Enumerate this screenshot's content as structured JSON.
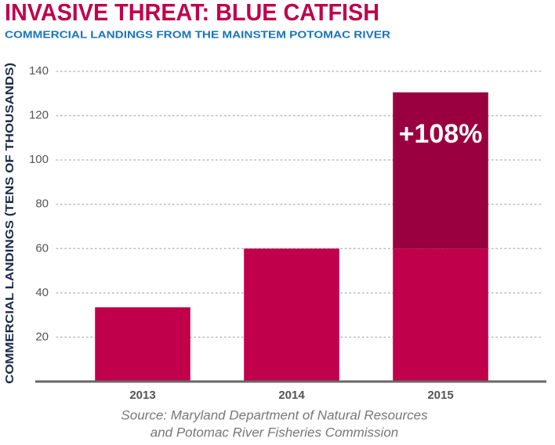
{
  "chart_data": {
    "type": "stacked_bar",
    "title": "INVASIVE THREAT: BLUE CATFISH",
    "subtitle": "COMMERCIAL LANDINGS FROM THE MAINSTEM POTOMAC RIVER",
    "ylabel": "COMMERCIAL LANDINGS (TENS OF THOUSANDS)",
    "source": [
      "Source: Maryland Department of Natural Resources",
      "and Potomac River Fisheries Commission"
    ],
    "annotation": "+108%",
    "categories": [
      "2013",
      "2014",
      "2015"
    ],
    "series": [
      {
        "color": "#c0004b",
        "values": [
          33.5,
          60,
          60
        ]
      },
      {
        "color": "#9a003f",
        "values": [
          null,
          null,
          70.5
        ]
      }
    ],
    "ylim": [
      0,
      140
    ],
    "yticks": [
      20,
      40,
      60,
      80,
      100,
      120,
      140
    ],
    "grid": true
  }
}
